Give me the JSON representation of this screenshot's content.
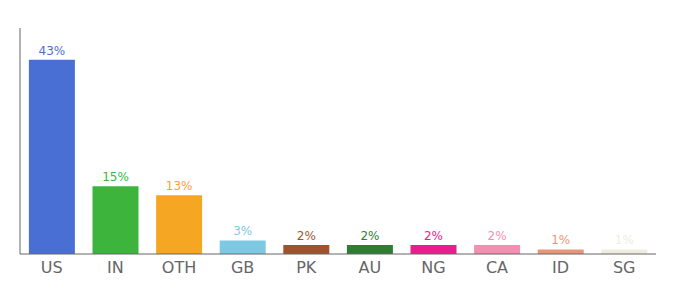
{
  "chart_data": {
    "type": "bar",
    "categories": [
      "US",
      "IN",
      "OTH",
      "GB",
      "PK",
      "AU",
      "NG",
      "CA",
      "ID",
      "SG"
    ],
    "values": [
      43,
      15,
      13,
      3,
      2,
      2,
      2,
      2,
      1,
      1
    ],
    "value_labels": [
      "43%",
      "15%",
      "13%",
      "3%",
      "2%",
      "2%",
      "2%",
      "2%",
      "1%",
      "1%"
    ],
    "colors": [
      "#4a6fd4",
      "#3db53d",
      "#f5a623",
      "#7ec8e3",
      "#a0522d",
      "#2e7d32",
      "#e91e8c",
      "#f48fb1",
      "#e8967a",
      "#f0ede0"
    ],
    "ylim": [
      0,
      50
    ],
    "data_labels": true,
    "tick_labels": "x",
    "grid": false
  }
}
